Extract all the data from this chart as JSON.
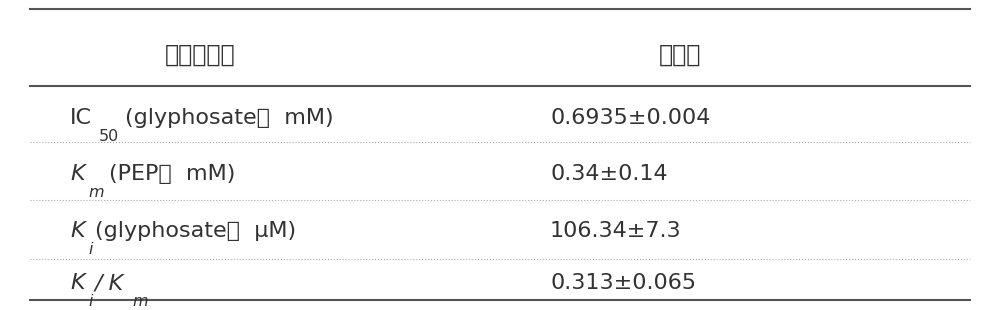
{
  "col1_header": "动力学参数",
  "col2_header": "测定值",
  "rows": [
    {
      "param_parts": [
        {
          "text": "IC",
          "style": "normal"
        },
        {
          "text": "50",
          "style": "subscript"
        },
        {
          "text": "(glyphosate；  mM)",
          "style": "normal"
        }
      ],
      "value": "0.6935±0.004"
    },
    {
      "param_parts": [
        {
          "text": "K",
          "style": "italic"
        },
        {
          "text": "m",
          "style": "italic_subscript"
        },
        {
          "text": "(PEP；  mM)",
          "style": "normal"
        }
      ],
      "value": "0.34±0.14"
    },
    {
      "param_parts": [
        {
          "text": "K",
          "style": "italic"
        },
        {
          "text": "i",
          "style": "italic_subscript"
        },
        {
          "text": "(glyphosate；  μM)",
          "style": "normal"
        }
      ],
      "value": "106.34±7.3"
    },
    {
      "param_parts": [
        {
          "text": "K",
          "style": "italic"
        },
        {
          "text": "i",
          "style": "italic_subscript"
        },
        {
          "text": "/ K",
          "style": "italic"
        },
        {
          "text": "m",
          "style": "italic_subscript"
        }
      ],
      "value": "0.313±0.065"
    }
  ],
  "bg_color": "#ffffff",
  "text_color": "#333333",
  "header_line_color": "#555555",
  "row_line_color": "#aaaaaa",
  "font_size": 16,
  "header_font_size": 17
}
